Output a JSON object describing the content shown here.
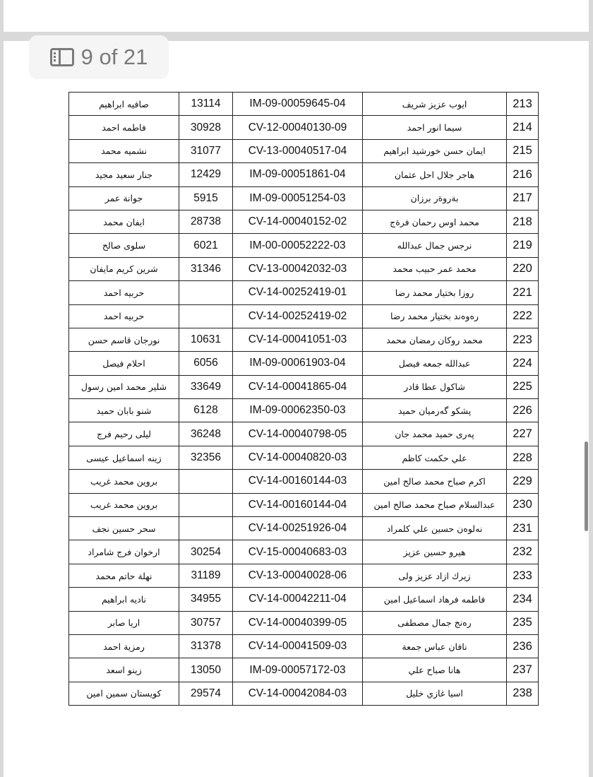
{
  "viewer": {
    "page_indicator": "9 of 21",
    "current_page": 9,
    "total_pages": 21,
    "sidebar_icon": "sidebar-icon"
  },
  "table": {
    "rows": [
      {
        "no": "213",
        "name": "ايوب عزيز شريف",
        "code": "IM-09-00059645-04",
        "num": "13114",
        "mother": "صافيه ابراهيم"
      },
      {
        "no": "214",
        "name": "سيما انور احمد",
        "code": "CV-12-00040130-09",
        "num": "30928",
        "mother": "فاطمه احمد"
      },
      {
        "no": "215",
        "name": "ايمان حسن خورشيد ابراهيم",
        "code": "CV-13-00040517-04",
        "num": "31077",
        "mother": "نشميه محمد"
      },
      {
        "no": "216",
        "name": "هاجر جلال احل عثمان",
        "code": "IM-09-00051861-04",
        "num": "12429",
        "mother": "جنار سعيد مجيد"
      },
      {
        "no": "217",
        "name": "بةروةر برزان",
        "code": "IM-09-00051254-03",
        "num": "5915",
        "mother": "جوانة عمر"
      },
      {
        "no": "218",
        "name": "محمد اوس رحمان فرةج",
        "code": "CV-14-00040152-02",
        "num": "28738",
        "mother": "ايفان محمد"
      },
      {
        "no": "219",
        "name": "نرجس جمال عبدالله",
        "code": "IM-00-00052222-03",
        "num": "6021",
        "mother": "سلوى صالح"
      },
      {
        "no": "220",
        "name": "محمد عمر حبيب محمد",
        "code": "CV-13-00042032-03",
        "num": "31346",
        "mother": "شرين كريم مايفان"
      },
      {
        "no": "221",
        "name": "روزا بختيار محمد رضا",
        "code": "CV-14-00252419-01",
        "num": "",
        "mother": "حربيه احمد"
      },
      {
        "no": "222",
        "name": "رەوەند بختيار محمد رضا",
        "code": "CV-14-00252419-02",
        "num": "",
        "mother": "حربيه احمد"
      },
      {
        "no": "223",
        "name": "محمد روكان رمضان محمد",
        "code": "CV-14-00041051-03",
        "num": "10631",
        "mother": "نورجان قاسم حسن"
      },
      {
        "no": "224",
        "name": "عبدالله جمعه فيصل",
        "code": "IM-09-00061903-04",
        "num": "6056",
        "mother": "احلام فيصل"
      },
      {
        "no": "225",
        "name": "شاكول عطا قادر",
        "code": "CV-14-00041865-04",
        "num": "33649",
        "mother": "شلير محمد امين رسول"
      },
      {
        "no": "226",
        "name": "پشكو گەرميان حميد",
        "code": "IM-09-00062350-03",
        "num": "6128",
        "mother": "شنو بابان حميد"
      },
      {
        "no": "227",
        "name": "پەری حميد محمد جان",
        "code": "CV-14-00040798-05",
        "num": "36248",
        "mother": "ليلى رحيم فرج"
      },
      {
        "no": "228",
        "name": "علي حكمت كاظم",
        "code": "CV-14-00040820-03",
        "num": "32356",
        "mother": "زينه اسماعيل عيسى"
      },
      {
        "no": "229",
        "name": "اكرم صباح محمد صالح امين",
        "code": "CV-14-00160144-03",
        "num": "",
        "mother": "بروين محمد غريب"
      },
      {
        "no": "230",
        "name": "عبدالسلام صباح محمد صالح امين",
        "code": "CV-14-00160144-04",
        "num": "",
        "mother": "بروين محمد غريب"
      },
      {
        "no": "231",
        "name": "نەلوەن حسين علي كلمراد",
        "code": "CV-14-00251926-04",
        "num": "",
        "mother": "سحر حسين نجف"
      },
      {
        "no": "232",
        "name": "هيرو حسين عزيز",
        "code": "CV-15-00040683-03",
        "num": "30254",
        "mother": "ارخوان فرج شامراد"
      },
      {
        "no": "233",
        "name": "زيرك ازاد عزيز ولى",
        "code": "CV-13-00040028-06",
        "num": "31189",
        "mother": "نهلة  حاتم محمد"
      },
      {
        "no": "234",
        "name": "فاطمه فرهاد اسماعيل امين",
        "code": "CV-14-00042211-04",
        "num": "34955",
        "mother": "ناديه ابراهيم"
      },
      {
        "no": "235",
        "name": "رەنج جمال مصطفى",
        "code": "CV-14-00040399-05",
        "num": "30757",
        "mother": "اريا صابر"
      },
      {
        "no": "236",
        "name": "نافان عباس جمعة",
        "code": "CV-14-00041509-03",
        "num": "31378",
        "mother": "رمزية احمد"
      },
      {
        "no": "237",
        "name": "هانا صباح علي",
        "code": "IM-09-00057172-03",
        "num": "13050",
        "mother": "زينو اسعد"
      },
      {
        "no": "238",
        "name": "اسيا غازي خليل",
        "code": "CV-14-00042084-03",
        "num": "29574",
        "mother": "كويستان سمين امين"
      }
    ]
  }
}
